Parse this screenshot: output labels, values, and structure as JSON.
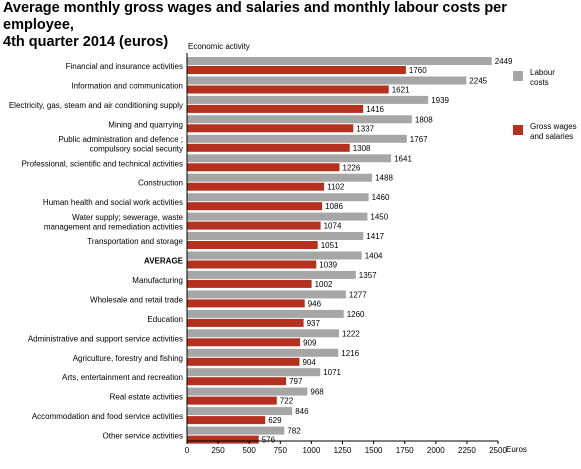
{
  "chart_data": {
    "type": "bar",
    "orientation": "horizontal",
    "title": "Average monthly gross wages and salaries and monthly labour costs per employee, 4th quarter 2014 (euros)",
    "title_lines": [
      "Average monthly gross wages and salaries and monthly labour costs per employee,",
      "4th quarter 2014 (euros)"
    ],
    "ylabel": "Economic activity",
    "xlabel": "Euros",
    "xlim": [
      0,
      2500
    ],
    "xticks": [
      0,
      250,
      500,
      750,
      1000,
      1250,
      1500,
      1750,
      2000,
      2250,
      2500
    ],
    "grid": false,
    "legend_position": "right",
    "categories": [
      {
        "lines": [
          "Financial and insurance activities"
        ],
        "bold": false
      },
      {
        "lines": [
          "Information and communication"
        ],
        "bold": false
      },
      {
        "lines": [
          "Electricity, gas, steam and air conditioning supply"
        ],
        "bold": false
      },
      {
        "lines": [
          "Mining and quarrying"
        ],
        "bold": false
      },
      {
        "lines": [
          "Public administration and defence ;",
          "compulsory social security"
        ],
        "bold": false
      },
      {
        "lines": [
          "Professional, scientific and technical activities"
        ],
        "bold": false
      },
      {
        "lines": [
          "Construction"
        ],
        "bold": false
      },
      {
        "lines": [
          "Human health and social work activities"
        ],
        "bold": false
      },
      {
        "lines": [
          "Water supply; sewerage, waste",
          "management and remediation activities"
        ],
        "bold": false
      },
      {
        "lines": [
          "Transportation and storage"
        ],
        "bold": false
      },
      {
        "lines": [
          "AVERAGE"
        ],
        "bold": true
      },
      {
        "lines": [
          "Manufacturing"
        ],
        "bold": false
      },
      {
        "lines": [
          "Wholesale and retail trade"
        ],
        "bold": false
      },
      {
        "lines": [
          "Education"
        ],
        "bold": false
      },
      {
        "lines": [
          "Administrative and support service activities"
        ],
        "bold": false
      },
      {
        "lines": [
          "Agriculture, forestry and fishing"
        ],
        "bold": false
      },
      {
        "lines": [
          "Arts, entertainment and recreation"
        ],
        "bold": false
      },
      {
        "lines": [
          "Real estate activities"
        ],
        "bold": false
      },
      {
        "lines": [
          "Accommodation and food service activities"
        ],
        "bold": false
      },
      {
        "lines": [
          "Other service activities"
        ],
        "bold": false
      }
    ],
    "series": [
      {
        "legend_lines": [
          "Labour",
          "costs"
        ],
        "color": "#a6a6a6",
        "values": [
          2449,
          2245,
          1939,
          1808,
          1767,
          1641,
          1488,
          1460,
          1450,
          1417,
          1404,
          1357,
          1277,
          1260,
          1222,
          1216,
          1071,
          968,
          846,
          782
        ]
      },
      {
        "legend_lines": [
          "Gross wages",
          "and salaries"
        ],
        "color": "#b5301e",
        "values": [
          1760,
          1621,
          1416,
          1337,
          1308,
          1226,
          1102,
          1086,
          1074,
          1051,
          1039,
          1002,
          946,
          937,
          909,
          904,
          797,
          722,
          629,
          576
        ]
      }
    ]
  }
}
